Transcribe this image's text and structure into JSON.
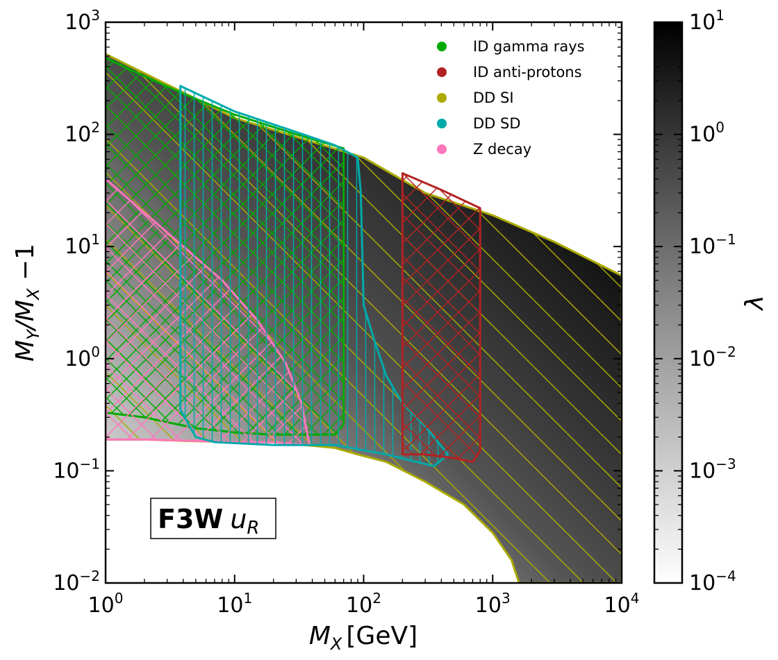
{
  "chart_data": {
    "type": "heatmap",
    "title": "",
    "xlabel_main": "M",
    "xlabel_sub": "X",
    "xlabel_unit": "[GeV]",
    "ylabel_main1": "M",
    "ylabel_sub1": "Y",
    "ylabel_mid": "/M",
    "ylabel_sub2": "X",
    "ylabel_tail": " −1",
    "x_scale": "log",
    "y_scale": "log",
    "xlim": [
      1,
      10000
    ],
    "ylim": [
      0.01,
      1000
    ],
    "x_ticks": [
      {
        "value": 1,
        "base": "10",
        "exp": "0"
      },
      {
        "value": 10,
        "base": "10",
        "exp": "1"
      },
      {
        "value": 100,
        "base": "10",
        "exp": "2"
      },
      {
        "value": 1000,
        "base": "10",
        "exp": "3"
      },
      {
        "value": 10000,
        "base": "10",
        "exp": "4"
      }
    ],
    "y_ticks": [
      {
        "value": 0.01,
        "base": "10",
        "exp": "−2"
      },
      {
        "value": 0.1,
        "base": "10",
        "exp": "−1"
      },
      {
        "value": 1,
        "base": "10",
        "exp": "0"
      },
      {
        "value": 10,
        "base": "10",
        "exp": "1"
      },
      {
        "value": 100,
        "base": "10",
        "exp": "2"
      },
      {
        "value": 1000,
        "base": "10",
        "exp": "3"
      }
    ],
    "colorbar": {
      "label": "λ",
      "scale": "log",
      "range": [
        0.0001,
        10
      ],
      "ticks": [
        {
          "value": 10,
          "base": "10",
          "exp": "1"
        },
        {
          "value": 1,
          "base": "10",
          "exp": "0"
        },
        {
          "value": 0.1,
          "base": "10",
          "exp": "−1"
        },
        {
          "value": 0.01,
          "base": "10",
          "exp": "−2"
        },
        {
          "value": 0.001,
          "base": "10",
          "exp": "−3"
        },
        {
          "value": 0.0001,
          "base": "10",
          "exp": "−4"
        }
      ],
      "low_color": "#ffffff",
      "high_color": "#000000"
    },
    "annotation": {
      "bold": "F3W",
      "italic": "u",
      "sub": "R"
    },
    "legend": {
      "position": "top-right",
      "entries": [
        {
          "label": "ID gamma rays",
          "color": "#00aa00"
        },
        {
          "label": "ID anti-protons",
          "color": "#b22222"
        },
        {
          "label": "DD SI",
          "color": "#aaaa00"
        },
        {
          "label": "DD SD",
          "color": "#00aaaa"
        },
        {
          "label": "Z decay",
          "color": "#ff77bb"
        }
      ]
    },
    "regions": [
      {
        "name": "allowed-region",
        "label": "",
        "color": "#aaaa00",
        "hatch": "none",
        "points": [
          [
            1,
            520
          ],
          [
            10,
            140
          ],
          [
            100,
            62
          ],
          [
            300,
            30
          ],
          [
            1000,
            19
          ],
          [
            3000,
            11
          ],
          [
            10000,
            5.5
          ],
          [
            10000,
            0.01
          ],
          [
            1600,
            0.01
          ],
          [
            1400,
            0.016
          ],
          [
            1000,
            0.028
          ],
          [
            600,
            0.05
          ],
          [
            300,
            0.08
          ],
          [
            150,
            0.12
          ],
          [
            90,
            0.14
          ],
          [
            60,
            0.16
          ],
          [
            20,
            0.18
          ],
          [
            10,
            0.18
          ],
          [
            4,
            0.185
          ],
          [
            2,
            0.19
          ],
          [
            1,
            0.19
          ]
        ]
      },
      {
        "name": "DD SI",
        "label": "DD SI",
        "color": "#aaaa00",
        "hatch": "diag-down",
        "points": "allowed-region"
      },
      {
        "name": "ID gamma rays",
        "label": "ID gamma rays",
        "color": "#00aa00",
        "hatch": "cross",
        "points": [
          [
            1,
            480
          ],
          [
            2,
            330
          ],
          [
            4,
            230
          ],
          [
            10,
            150
          ],
          [
            30,
            100
          ],
          [
            70,
            75
          ],
          [
            70,
            0.26
          ],
          [
            60,
            0.21
          ],
          [
            20,
            0.21
          ],
          [
            10,
            0.22
          ],
          [
            5,
            0.24
          ],
          [
            2,
            0.3
          ],
          [
            1,
            0.33
          ]
        ]
      },
      {
        "name": "Z decay",
        "label": "Z decay",
        "color": "#ff77bb",
        "hatch": "cross",
        "points": [
          [
            1,
            40
          ],
          [
            2,
            20
          ],
          [
            4,
            10
          ],
          [
            8,
            5
          ],
          [
            15,
            2.2
          ],
          [
            25,
            0.9
          ],
          [
            33,
            0.4
          ],
          [
            38,
            0.17
          ],
          [
            20,
            0.18
          ],
          [
            10,
            0.18
          ],
          [
            5,
            0.185
          ],
          [
            2,
            0.19
          ],
          [
            1,
            0.19
          ]
        ]
      },
      {
        "name": "DD SD",
        "label": "DD SD",
        "color": "#00aaaa",
        "hatch": "vertical",
        "points": [
          [
            3.8,
            270
          ],
          [
            10,
            160
          ],
          [
            30,
            105
          ],
          [
            60,
            80
          ],
          [
            90,
            62
          ],
          [
            95,
            30
          ],
          [
            100,
            3
          ],
          [
            120,
            1.5
          ],
          [
            150,
            0.7
          ],
          [
            200,
            0.4
          ],
          [
            300,
            0.25
          ],
          [
            450,
            0.14
          ],
          [
            350,
            0.11
          ],
          [
            150,
            0.14
          ],
          [
            60,
            0.17
          ],
          [
            20,
            0.17
          ],
          [
            7,
            0.18
          ],
          [
            5,
            0.2
          ],
          [
            3.8,
            0.35
          ]
        ]
      },
      {
        "name": "ID anti-protons",
        "label": "ID anti-protons",
        "color": "#b22222",
        "hatch": "cross",
        "points": [
          [
            200,
            45
          ],
          [
            400,
            32
          ],
          [
            800,
            22
          ],
          [
            800,
            0.15
          ],
          [
            700,
            0.12
          ],
          [
            500,
            0.13
          ],
          [
            300,
            0.14
          ],
          [
            200,
            0.14
          ]
        ]
      }
    ]
  }
}
